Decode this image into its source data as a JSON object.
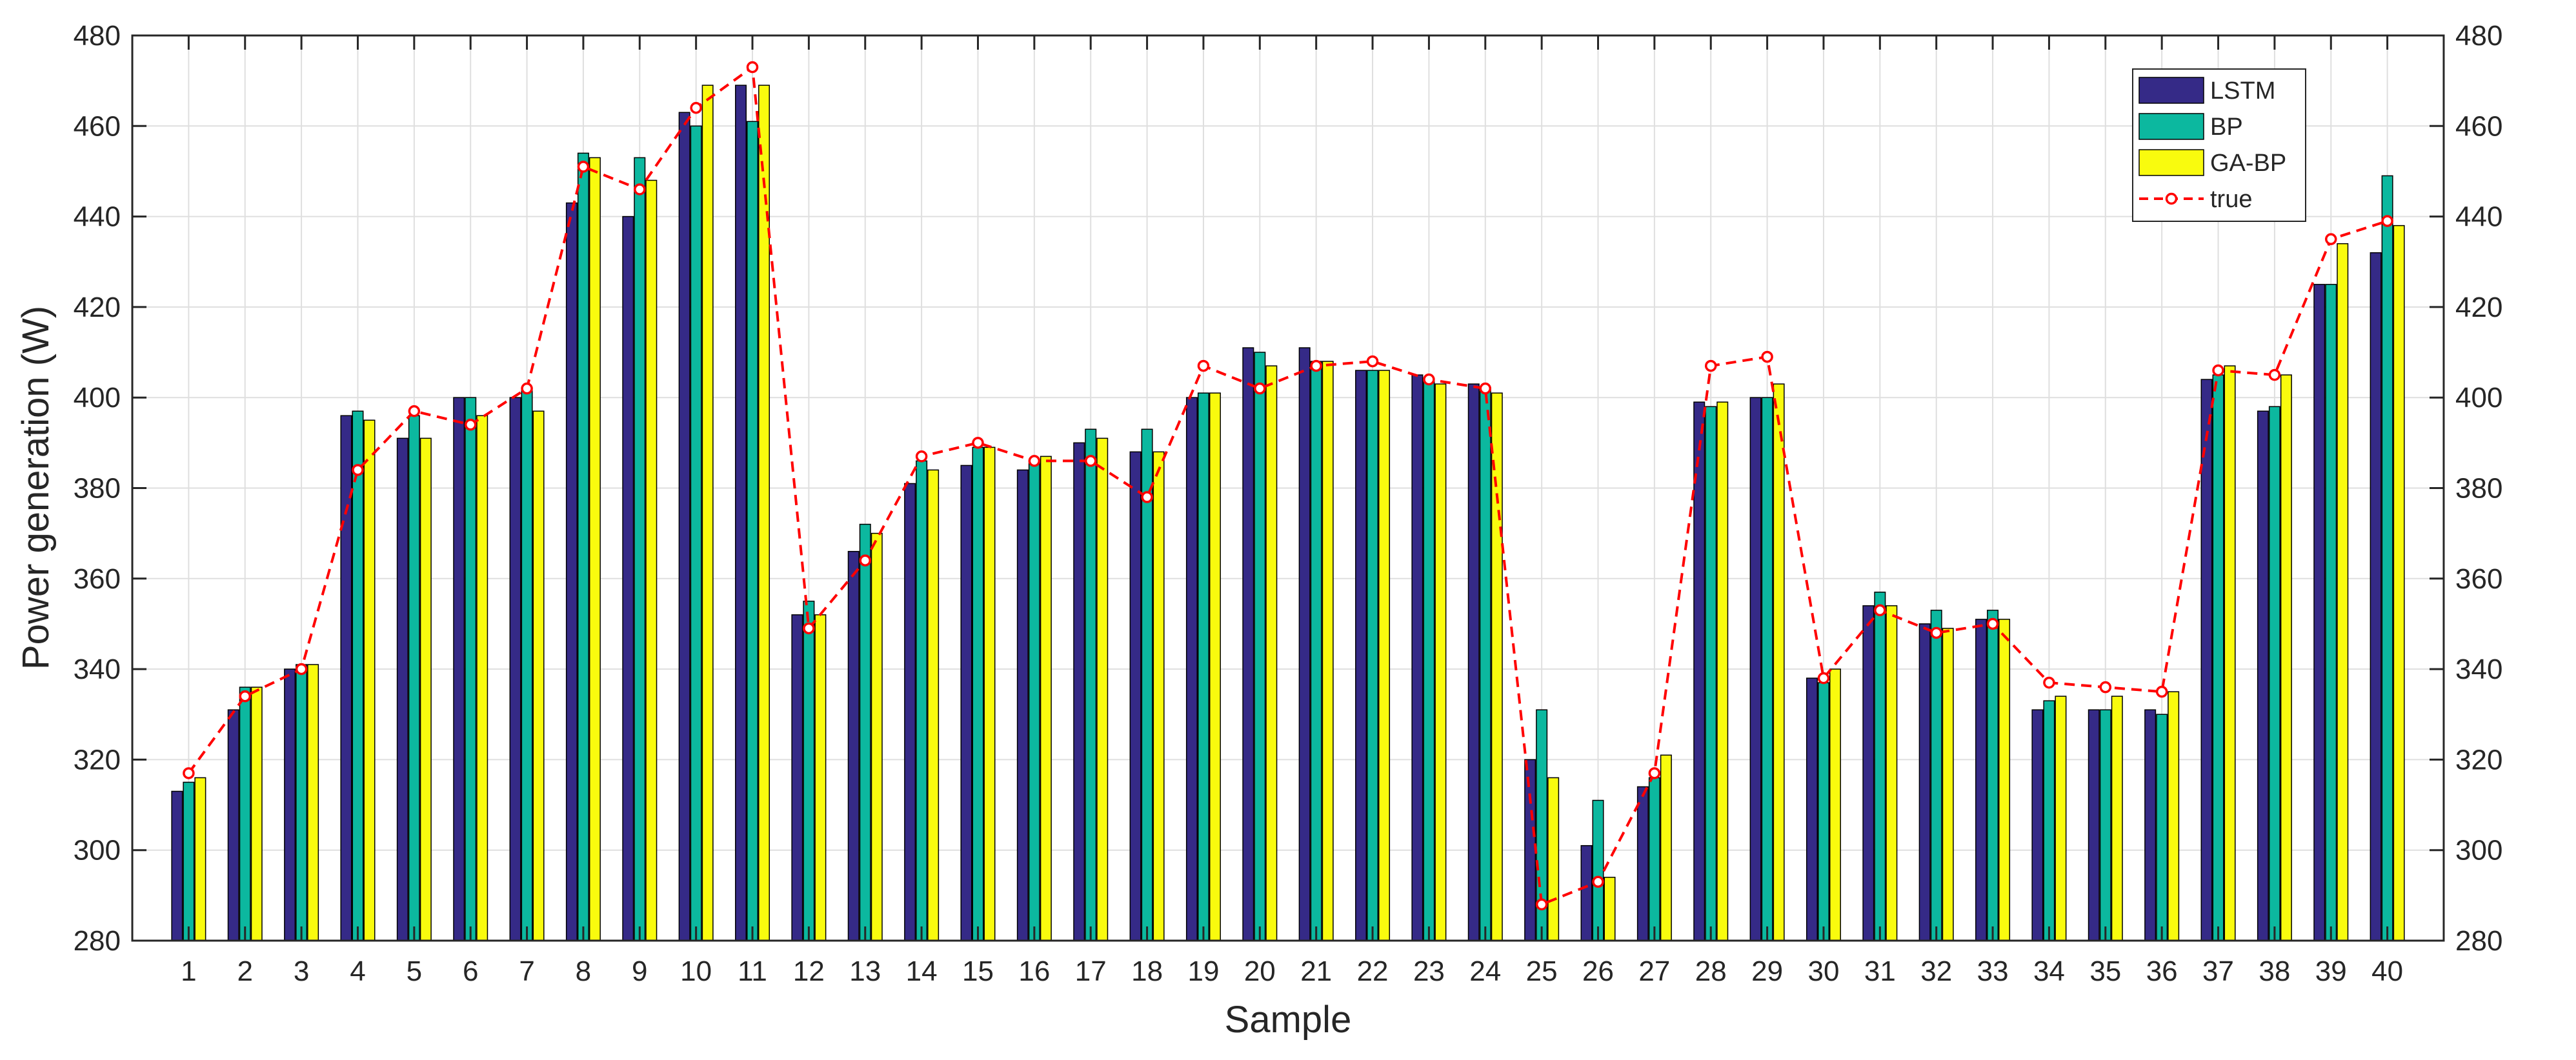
{
  "chart_data": {
    "type": "bar",
    "title": "",
    "xlabel": "Sample",
    "ylabel": "Power generation (W)",
    "ylim": [
      280,
      480
    ],
    "yticks": [
      280,
      300,
      320,
      340,
      360,
      380,
      400,
      420,
      440,
      460,
      480
    ],
    "right_axis_mirrored": true,
    "grid": true,
    "legend_placement": "top-right",
    "categories": [
      "1",
      "2",
      "3",
      "4",
      "5",
      "6",
      "7",
      "8",
      "9",
      "10",
      "11",
      "12",
      "13",
      "14",
      "15",
      "16",
      "17",
      "18",
      "19",
      "20",
      "21",
      "22",
      "23",
      "24",
      "25",
      "26",
      "27",
      "28",
      "29",
      "30",
      "31",
      "32",
      "33",
      "34",
      "35",
      "36",
      "37",
      "38",
      "39",
      "40"
    ],
    "series": [
      {
        "name": "LSTM",
        "kind": "bar",
        "color": "#352a87",
        "values": [
          313,
          331,
          340,
          396,
          391,
          400,
          400,
          443,
          440,
          463,
          469,
          352,
          366,
          381,
          385,
          384,
          390,
          388,
          400,
          411,
          411,
          406,
          405,
          403,
          320,
          301,
          314,
          399,
          400,
          338,
          354,
          350,
          351,
          331,
          331,
          331,
          404,
          397,
          425,
          432
        ]
      },
      {
        "name": "BP",
        "kind": "bar",
        "color": "#0cb89f",
        "values": [
          315,
          336,
          341,
          397,
          396,
          400,
          402,
          454,
          453,
          460,
          461,
          355,
          372,
          386,
          389,
          386,
          393,
          393,
          401,
          410,
          408,
          406,
          404,
          402,
          331,
          311,
          316,
          398,
          400,
          337,
          357,
          353,
          353,
          333,
          331,
          330,
          405,
          398,
          425,
          449
        ]
      },
      {
        "name": "GA-BP",
        "kind": "bar",
        "color": "#f9fb0e",
        "values": [
          316,
          336,
          341,
          395,
          391,
          396,
          397,
          453,
          448,
          469,
          469,
          352,
          370,
          384,
          389,
          387,
          391,
          388,
          401,
          407,
          408,
          406,
          403,
          401,
          316,
          294,
          321,
          399,
          403,
          340,
          354,
          349,
          351,
          334,
          334,
          335,
          407,
          405,
          434,
          438
        ]
      },
      {
        "name": "true",
        "kind": "line",
        "color": "#ff0000",
        "values": [
          317,
          334,
          340,
          384,
          397,
          394,
          402,
          451,
          446,
          464,
          473,
          349,
          364,
          387,
          390,
          386,
          386,
          378,
          407,
          402,
          407,
          408,
          404,
          402,
          288,
          293,
          317,
          407,
          409,
          338,
          353,
          348,
          350,
          337,
          336,
          335,
          406,
          405,
          435,
          439
        ]
      }
    ]
  }
}
